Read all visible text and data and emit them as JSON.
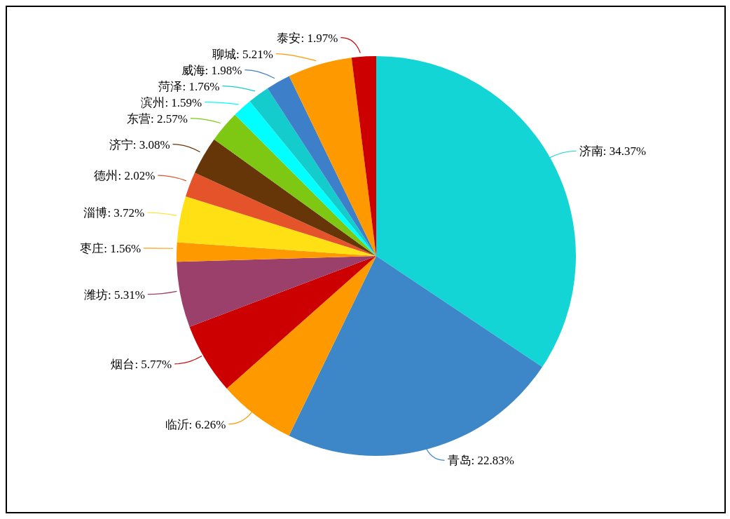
{
  "chart_data": {
    "type": "pie",
    "categories": [
      "济南",
      "青岛",
      "临沂",
      "烟台",
      "潍坊",
      "枣庄",
      "淄博",
      "德州",
      "济宁",
      "东营",
      "滨州",
      "菏泽",
      "威海",
      "聊城",
      "泰安"
    ],
    "values": [
      34.37,
      22.83,
      6.26,
      5.77,
      5.31,
      1.56,
      3.72,
      2.02,
      3.08,
      2.57,
      1.59,
      1.76,
      1.98,
      5.21,
      1.97
    ],
    "value_labels": [
      "34.37%",
      "22.83%",
      "6.26%",
      "5.77%",
      "5.31%",
      "1.56%",
      "3.72%",
      "2.02%",
      "3.08%",
      "2.57%",
      "1.59%",
      "1.76%",
      "1.98%",
      "5.21%",
      "1.97%"
    ],
    "colors": [
      "#14d5d6",
      "#3d87c8",
      "#ff9900",
      "#cc0000",
      "#9b3f6b",
      "#ff9900",
      "#ffe015",
      "#e5532a",
      "#663508",
      "#7ec814",
      "#00ffff",
      "#14cccc",
      "#3d7fc8",
      "#ff9900",
      "#cc0000"
    ]
  }
}
